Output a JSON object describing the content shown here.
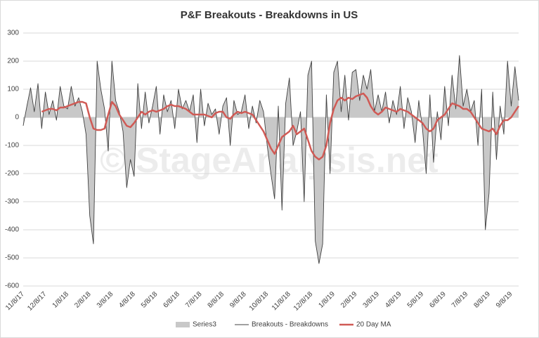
{
  "chart_data": {
    "type": "line",
    "title": "P&F Breakouts - Breakdowns in US",
    "watermark": "© StageAnalysis.net",
    "categories": [
      "11/8/17",
      null,
      null,
      null,
      null,
      null,
      "12/8/17",
      null,
      null,
      null,
      null,
      null,
      "1/8/18",
      null,
      null,
      null,
      null,
      null,
      "2/8/18",
      null,
      null,
      null,
      null,
      null,
      "3/8/18",
      null,
      null,
      null,
      null,
      null,
      "4/8/18",
      null,
      null,
      null,
      null,
      null,
      "5/8/18",
      null,
      null,
      null,
      null,
      null,
      "6/8/18",
      null,
      null,
      null,
      null,
      null,
      "7/8/18",
      null,
      null,
      null,
      null,
      null,
      "8/8/18",
      null,
      null,
      null,
      null,
      null,
      "9/8/18",
      null,
      null,
      null,
      null,
      null,
      "10/8/18",
      null,
      null,
      null,
      null,
      null,
      "11/8/18",
      null,
      null,
      null,
      null,
      null,
      "12/8/18",
      null,
      null,
      null,
      null,
      null,
      "1/8/19",
      null,
      null,
      null,
      null,
      null,
      "2/8/19",
      null,
      null,
      null,
      null,
      null,
      "3/8/19",
      null,
      null,
      null,
      null,
      null,
      "4/8/19",
      null,
      null,
      null,
      null,
      null,
      "5/8/19",
      null,
      null,
      null,
      null,
      null,
      "6/8/19",
      null,
      null,
      null,
      null,
      null,
      "7/8/19",
      null,
      null,
      null,
      null,
      null,
      "8/8/19",
      null,
      null,
      null,
      null,
      null,
      "9/8/19",
      null,
      null
    ],
    "series": [
      {
        "name": "Series3",
        "kind": "area",
        "color": "#c8c8c8",
        "values": [
          -30,
          40,
          105,
          20,
          120,
          -40,
          90,
          10,
          60,
          -10,
          110,
          40,
          30,
          110,
          40,
          70,
          20,
          -60,
          -350,
          -450,
          200,
          100,
          30,
          -120,
          200,
          60,
          20,
          -50,
          -250,
          -150,
          -210,
          120,
          -40,
          90,
          -20,
          40,
          110,
          -60,
          80,
          20,
          60,
          -40,
          100,
          30,
          60,
          20,
          80,
          -90,
          100,
          -30,
          50,
          10,
          30,
          -60,
          40,
          70,
          -100,
          60,
          10,
          20,
          80,
          -40,
          40,
          -20,
          60,
          20,
          -100,
          -200,
          -290,
          40,
          -330,
          50,
          140,
          -100,
          -50,
          20,
          -300,
          150,
          200,
          -440,
          -520,
          -450,
          80,
          -200,
          160,
          200,
          20,
          150,
          -10,
          160,
          170,
          60,
          150,
          100,
          170,
          20,
          80,
          20,
          90,
          -20,
          60,
          10,
          110,
          -40,
          70,
          20,
          -90,
          60,
          -40,
          -200,
          80,
          -160,
          20,
          -80,
          110,
          -30,
          150,
          30,
          220,
          40,
          100,
          20,
          60,
          -100,
          100,
          -400,
          -270,
          90,
          -150,
          40,
          -60,
          200,
          40,
          180,
          60
        ]
      },
      {
        "name": "Breakouts - Breakdowns",
        "kind": "line",
        "color": "#404040",
        "values": [
          -30,
          40,
          105,
          20,
          120,
          -40,
          90,
          10,
          60,
          -10,
          110,
          40,
          30,
          110,
          40,
          70,
          20,
          -60,
          -350,
          -450,
          200,
          100,
          30,
          -120,
          200,
          60,
          20,
          -50,
          -250,
          -150,
          -210,
          120,
          -40,
          90,
          -20,
          40,
          110,
          -60,
          80,
          20,
          60,
          -40,
          100,
          30,
          60,
          20,
          80,
          -90,
          100,
          -30,
          50,
          10,
          30,
          -60,
          40,
          70,
          -100,
          60,
          10,
          20,
          80,
          -40,
          40,
          -20,
          60,
          20,
          -100,
          -200,
          -290,
          40,
          -330,
          50,
          140,
          -100,
          -50,
          20,
          -300,
          150,
          200,
          -440,
          -520,
          -450,
          80,
          -200,
          160,
          200,
          20,
          150,
          -10,
          160,
          170,
          60,
          150,
          100,
          170,
          20,
          80,
          20,
          90,
          -20,
          60,
          10,
          110,
          -40,
          70,
          20,
          -90,
          60,
          -40,
          -200,
          80,
          -160,
          20,
          -80,
          110,
          -30,
          150,
          30,
          220,
          40,
          100,
          20,
          60,
          -100,
          100,
          -400,
          -270,
          90,
          -150,
          40,
          -60,
          200,
          40,
          180,
          60
        ]
      },
      {
        "name": "20 Day MA",
        "kind": "line",
        "color": "#d05a55",
        "values": [
          null,
          null,
          null,
          null,
          null,
          20,
          25,
          30,
          30,
          25,
          35,
          35,
          40,
          45,
          50,
          55,
          55,
          50,
          0,
          -40,
          -45,
          -45,
          -40,
          10,
          55,
          40,
          10,
          -10,
          -30,
          -35,
          -20,
          0,
          20,
          10,
          20,
          25,
          20,
          25,
          30,
          40,
          45,
          40,
          40,
          35,
          30,
          20,
          10,
          10,
          10,
          10,
          5,
          0,
          15,
          20,
          20,
          0,
          -5,
          10,
          20,
          15,
          20,
          15,
          10,
          -10,
          -30,
          -50,
          -80,
          -110,
          -130,
          -100,
          -70,
          -60,
          -50,
          -30,
          -60,
          -50,
          -40,
          -80,
          -120,
          -140,
          -150,
          -140,
          -100,
          -20,
          30,
          60,
          70,
          60,
          70,
          65,
          75,
          80,
          85,
          70,
          40,
          20,
          10,
          20,
          35,
          30,
          25,
          20,
          30,
          25,
          20,
          10,
          0,
          -10,
          -20,
          -40,
          -50,
          -40,
          -10,
          0,
          10,
          30,
          50,
          45,
          40,
          30,
          30,
          20,
          0,
          -20,
          -40,
          -45,
          -50,
          -40,
          -60,
          -30,
          -10,
          -10,
          0,
          20,
          40
        ]
      }
    ],
    "ylim": [
      -600,
      300
    ],
    "yticks": [
      -600,
      -500,
      -400,
      -300,
      -200,
      -100,
      0,
      100,
      200,
      300
    ],
    "grid": true,
    "legend": "bottom"
  }
}
